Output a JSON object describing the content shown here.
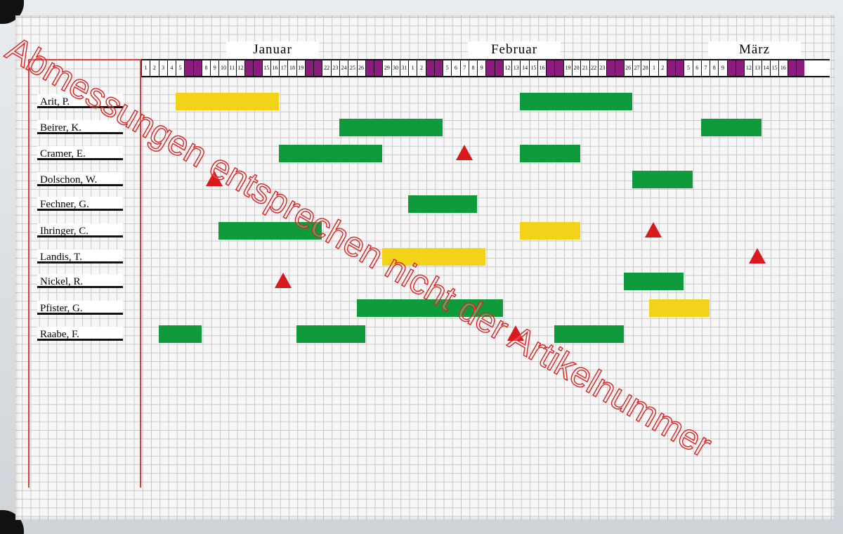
{
  "months": [
    {
      "label": "Januar",
      "days": 31
    },
    {
      "label": "Februar",
      "days": 28
    },
    {
      "label": "März",
      "days": 18
    }
  ],
  "weekend_days": {
    "1": [
      6,
      7,
      13,
      14,
      20,
      21,
      27,
      28
    ],
    "2": [
      3,
      4,
      10,
      11,
      17,
      18,
      24,
      25
    ],
    "3": [
      3,
      4,
      10,
      11,
      17,
      18
    ]
  },
  "colors": {
    "green": "#0f9a3c",
    "yellow": "#f3d21a",
    "triangle": "#d9191b",
    "weekend": "#8c1b7e",
    "marker_line": "#e23b3b"
  },
  "rows": [
    {
      "name": "Arit, P.",
      "bars": [
        {
          "from": [
            1,
            5
          ],
          "to": [
            1,
            16
          ],
          "color": "yellow"
        },
        {
          "from": [
            2,
            14
          ],
          "to": [
            2,
            26
          ],
          "color": "green"
        }
      ],
      "triangles": []
    },
    {
      "name": "Beirer, K.",
      "bars": [
        {
          "from": [
            1,
            24
          ],
          "to": [
            2,
            4
          ],
          "color": "green"
        },
        {
          "from": [
            3,
            7
          ],
          "to": [
            3,
            13
          ],
          "color": "green"
        }
      ],
      "triangles": []
    },
    {
      "name": "Cramer, E.",
      "bars": [
        {
          "from": [
            1,
            17
          ],
          "to": [
            1,
            28
          ],
          "color": "green"
        },
        {
          "from": [
            2,
            14
          ],
          "to": [
            2,
            20
          ],
          "color": "green"
        }
      ],
      "triangles": [
        [
          2,
          7
        ]
      ]
    },
    {
      "name": "Dolschon, W.",
      "bars": [
        {
          "from": [
            2,
            27
          ],
          "to": [
            3,
            5
          ],
          "color": "green"
        }
      ],
      "triangles": [
        [
          1,
          9
        ]
      ]
    },
    {
      "name": "Fechner, G.",
      "bars": [
        {
          "from": [
            2,
            1
          ],
          "to": [
            2,
            8
          ],
          "color": "green"
        }
      ],
      "triangles": []
    },
    {
      "name": "Ihringer, C.",
      "bars": [
        {
          "from": [
            1,
            10
          ],
          "to": [
            1,
            21
          ],
          "color": "green"
        },
        {
          "from": [
            2,
            14
          ],
          "to": [
            2,
            20
          ],
          "color": "yellow"
        }
      ],
      "triangles": [
        [
          3,
          1
        ]
      ]
    },
    {
      "name": "Landis, T.",
      "bars": [
        {
          "from": [
            1,
            29
          ],
          "to": [
            2,
            9
          ],
          "color": "yellow"
        }
      ],
      "triangles": [
        [
          3,
          13
        ]
      ]
    },
    {
      "name": "Nickel, R.",
      "bars": [
        {
          "from": [
            2,
            26
          ],
          "to": [
            3,
            4
          ],
          "color": "green"
        }
      ],
      "triangles": [
        [
          1,
          17
        ]
      ]
    },
    {
      "name": "Pfister, G.",
      "bars": [
        {
          "from": [
            1,
            26
          ],
          "to": [
            2,
            11
          ],
          "color": "green"
        },
        {
          "from": [
            3,
            1
          ],
          "to": [
            3,
            7
          ],
          "color": "yellow"
        }
      ],
      "triangles": []
    },
    {
      "name": "Raabe, F.",
      "bars": [
        {
          "from": [
            1,
            3
          ],
          "to": [
            1,
            7
          ],
          "color": "green"
        },
        {
          "from": [
            1,
            19
          ],
          "to": [
            1,
            26
          ],
          "color": "green"
        },
        {
          "from": [
            2,
            18
          ],
          "to": [
            2,
            25
          ],
          "color": "green"
        }
      ],
      "triangles": [
        [
          2,
          13
        ]
      ]
    }
  ],
  "watermark": "Abmessungen entsprechen nicht der Artikelnummer"
}
